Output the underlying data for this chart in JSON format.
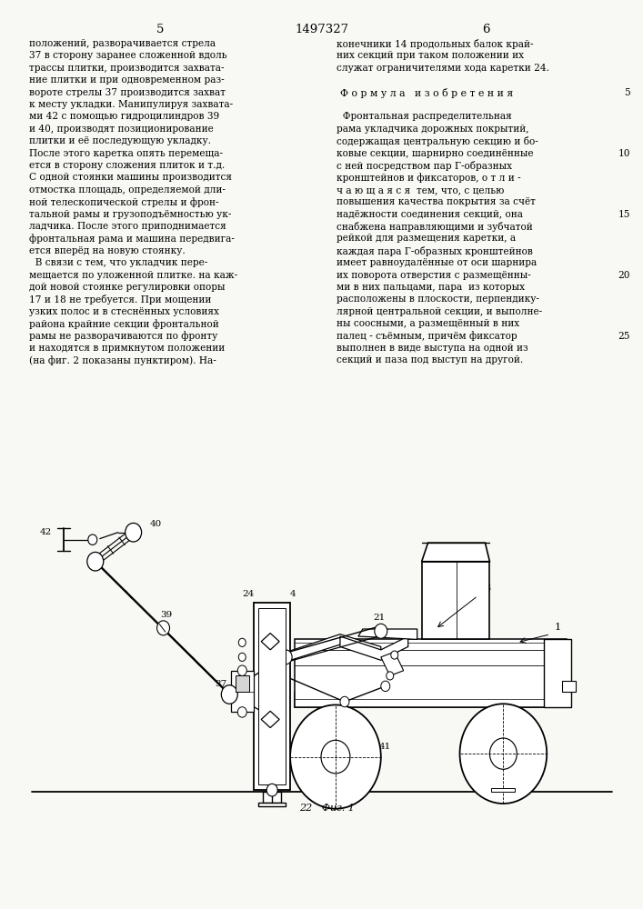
{
  "bg": "#f8f8f5",
  "hdr_left": "5",
  "hdr_center": "1497327",
  "hdr_right": "6",
  "left_col": [
    "положений, разворачивается стрела",
    "37 в сторону заранее сложенной вдоль",
    "трассы плитки, производится захвата-",
    "ние плитки и при одновременном раз-",
    "вороте стрелы 37 производится захват",
    "к месту укладки. Манипулируя захвата-",
    "ми 42 с помощью гидроцилиндров 39",
    "и 40, производят позиционирование",
    "плитки и её последующую укладку.",
    "После этого каретка опять перемеща-",
    "ется в сторону сложения плиток и т.д.",
    "С одной стоянки машины производится",
    "отмостка площадь, определяемой дли-",
    "ной телескопической стрелы и фрон-",
    "тальной рамы и грузоподъёмностью ук-",
    "ладчика. После этого приподнимается",
    "фронтальная рама и машина передвига-",
    "ется вперёд на новую стоянку.",
    "  В связи с тем, что укладчик пере-",
    "мещается по уложенной плитке. на каж-",
    "дой новой стоянке регулировки опоры",
    "17 и 18 не требуется. При мощении",
    "узких полос и в стеснённых условиях",
    "района крайние секции фронтальной",
    "рамы не разворачиваются по фронту",
    "и находятся в примкнутом положении",
    "(на фиг. 2 показаны пунктиром). На-"
  ],
  "right_col": [
    "конечники 14 продольных балок край-",
    "них секций при таком положении их",
    "служат ограничителями хода каретки 24.",
    "",
    "Ф о р м у л а   и з о б р е т е н и я",
    "",
    "  Фронтальная распределительная",
    "рама укладчика дорожных покрытий,",
    "содержащая центральную секцию и бо-",
    "ковые секции, шарнирно соединённые",
    "с ней посредством пар Г-образных",
    "кронштейнов и фиксаторов, о т л и -",
    "ч а ю щ а я с я  тем, что, с целью",
    "повышения качества покрытия за счёт",
    "надёжности соединения секций, она",
    "снабжена направляющими и зубчатой",
    "рейкой для размещения каретки, а",
    "каждая пара Г-образных кронштейнов",
    "имеет равноудалённые от оси шарнира",
    "их поворота отверстия с размещённы-",
    "ми в них пальцами, пара  из которых",
    "расположены в плоскости, перпендику-",
    "лярной центральной секции, и выполне-",
    "ны соосными, а размещённый в них",
    "палец - съёмным, причём фиксатор",
    "выполнен в виде выступа на одной из",
    "секций и паза под выступ на другой."
  ],
  "fig_caption": "22   Фиг. 1",
  "line_nums": [
    5,
    10,
    15,
    20,
    25
  ]
}
